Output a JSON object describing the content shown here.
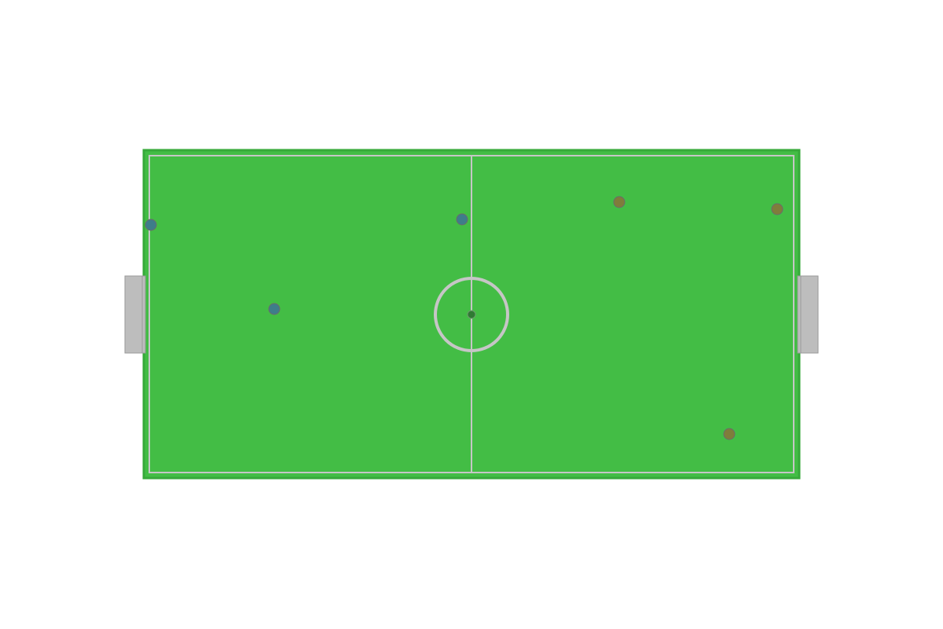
{
  "field": {
    "grass_color": "#43bd45",
    "border_color": "#37a93a",
    "line_color": "#c6c6c6",
    "goal_color": "#bdbdbd",
    "goal_stroke": "#9a9a9a",
    "center_spot_color": "#2f7a33"
  },
  "teams": {
    "blue": {
      "color": "#3e7d8a",
      "players": [
        {
          "id": "blue-1"
        },
        {
          "id": "blue-2"
        },
        {
          "id": "blue-3"
        }
      ]
    },
    "orange": {
      "color": "#7f7d3b",
      "players": [
        {
          "id": "orange-1"
        },
        {
          "id": "orange-2"
        },
        {
          "id": "orange-3"
        }
      ]
    }
  }
}
